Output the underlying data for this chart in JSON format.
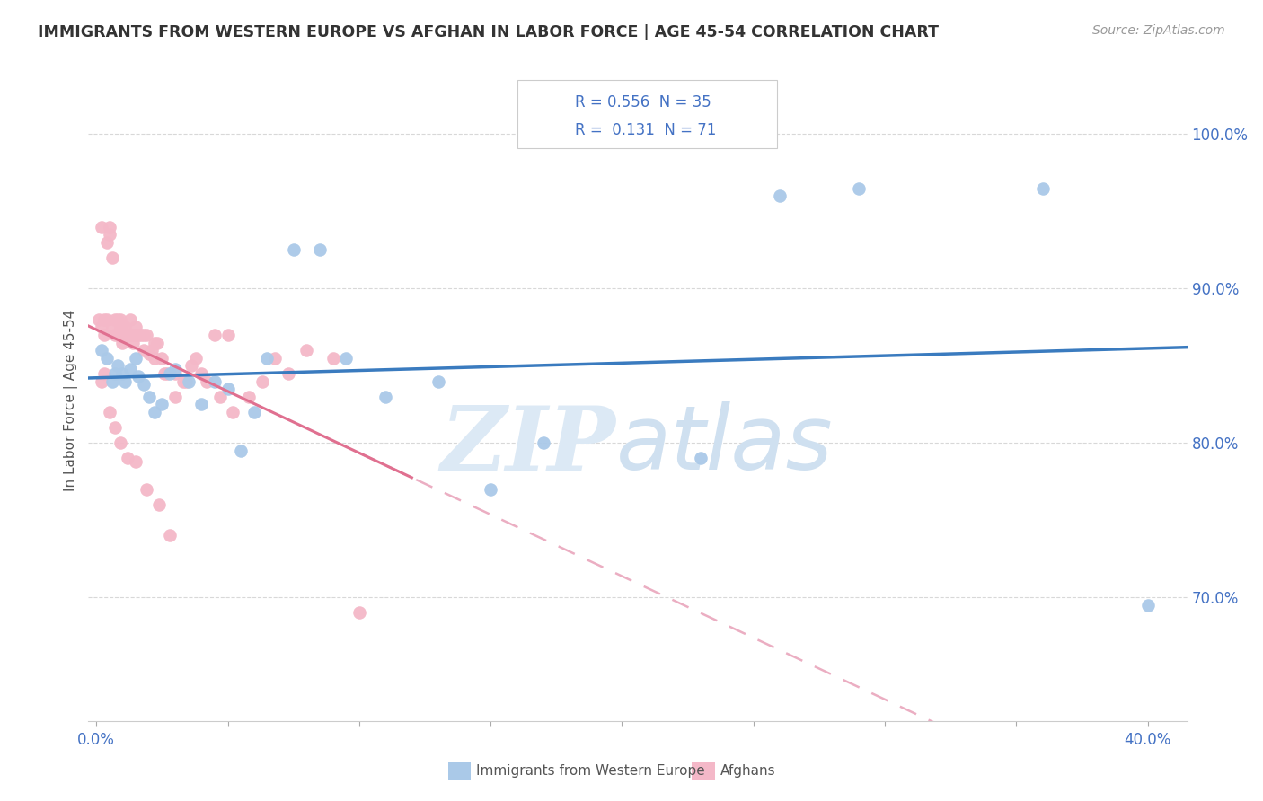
{
  "title": "IMMIGRANTS FROM WESTERN EUROPE VS AFGHAN IN LABOR FORCE | AGE 45-54 CORRELATION CHART",
  "source": "Source: ZipAtlas.com",
  "ylabel": "In Labor Force | Age 45-54",
  "xlim": [
    -0.003,
    0.415
  ],
  "ylim": [
    0.62,
    1.035
  ],
  "x_tick_positions": [
    0.0,
    0.05,
    0.1,
    0.15,
    0.2,
    0.25,
    0.3,
    0.35,
    0.4
  ],
  "x_tick_labels": [
    "0.0%",
    "",
    "",
    "",
    "",
    "",
    "",
    "",
    "40.0%"
  ],
  "y_tick_positions": [
    0.7,
    0.8,
    0.9,
    1.0
  ],
  "y_tick_labels": [
    "70.0%",
    "80.0%",
    "90.0%",
    "100.0%"
  ],
  "legend_blue_R": "0.556",
  "legend_blue_N": "35",
  "legend_pink_R": "0.131",
  "legend_pink_N": "71",
  "blue_color": "#aac9e8",
  "pink_color": "#f4b8c8",
  "blue_line_color": "#3a7bbf",
  "pink_line_color": "#e07090",
  "pink_dash_color": "#e8a0b8",
  "blue_scatter_x": [
    0.002,
    0.004,
    0.006,
    0.007,
    0.008,
    0.01,
    0.011,
    0.013,
    0.015,
    0.016,
    0.018,
    0.02,
    0.022,
    0.025,
    0.028,
    0.03,
    0.035,
    0.04,
    0.045,
    0.05,
    0.055,
    0.06,
    0.065,
    0.075,
    0.085,
    0.095,
    0.11,
    0.13,
    0.15,
    0.17,
    0.23,
    0.26,
    0.29,
    0.36,
    0.4
  ],
  "blue_scatter_y": [
    0.86,
    0.855,
    0.84,
    0.845,
    0.85,
    0.845,
    0.84,
    0.848,
    0.855,
    0.843,
    0.838,
    0.83,
    0.82,
    0.825,
    0.845,
    0.848,
    0.84,
    0.825,
    0.84,
    0.835,
    0.795,
    0.82,
    0.855,
    0.925,
    0.925,
    0.855,
    0.83,
    0.84,
    0.77,
    0.8,
    0.79,
    0.96,
    0.965,
    0.965,
    0.695
  ],
  "pink_scatter_x": [
    0.001,
    0.002,
    0.002,
    0.003,
    0.003,
    0.004,
    0.004,
    0.005,
    0.005,
    0.006,
    0.006,
    0.007,
    0.007,
    0.008,
    0.008,
    0.009,
    0.009,
    0.01,
    0.01,
    0.011,
    0.011,
    0.012,
    0.012,
    0.013,
    0.013,
    0.014,
    0.014,
    0.015,
    0.015,
    0.016,
    0.017,
    0.018,
    0.019,
    0.02,
    0.021,
    0.022,
    0.023,
    0.025,
    0.027,
    0.03,
    0.033,
    0.036,
    0.04,
    0.045,
    0.05,
    0.018,
    0.022,
    0.026,
    0.03,
    0.034,
    0.038,
    0.042,
    0.047,
    0.052,
    0.058,
    0.063,
    0.068,
    0.073,
    0.08,
    0.09,
    0.002,
    0.003,
    0.005,
    0.007,
    0.009,
    0.012,
    0.015,
    0.019,
    0.024,
    0.028,
    0.1
  ],
  "pink_scatter_y": [
    0.88,
    0.875,
    0.94,
    0.87,
    0.88,
    0.88,
    0.93,
    0.935,
    0.94,
    0.92,
    0.875,
    0.88,
    0.87,
    0.88,
    0.87,
    0.88,
    0.875,
    0.875,
    0.865,
    0.875,
    0.87,
    0.87,
    0.87,
    0.88,
    0.87,
    0.87,
    0.865,
    0.875,
    0.87,
    0.87,
    0.87,
    0.87,
    0.87,
    0.858,
    0.86,
    0.865,
    0.865,
    0.855,
    0.845,
    0.845,
    0.84,
    0.85,
    0.845,
    0.87,
    0.87,
    0.86,
    0.855,
    0.845,
    0.83,
    0.84,
    0.855,
    0.84,
    0.83,
    0.82,
    0.83,
    0.84,
    0.855,
    0.845,
    0.86,
    0.855,
    0.84,
    0.845,
    0.82,
    0.81,
    0.8,
    0.79,
    0.788,
    0.77,
    0.76,
    0.74,
    0.69
  ],
  "watermark_zip": "ZIP",
  "watermark_atlas": "atlas",
  "bg_color": "#ffffff",
  "grid_color": "#d8d8d8"
}
